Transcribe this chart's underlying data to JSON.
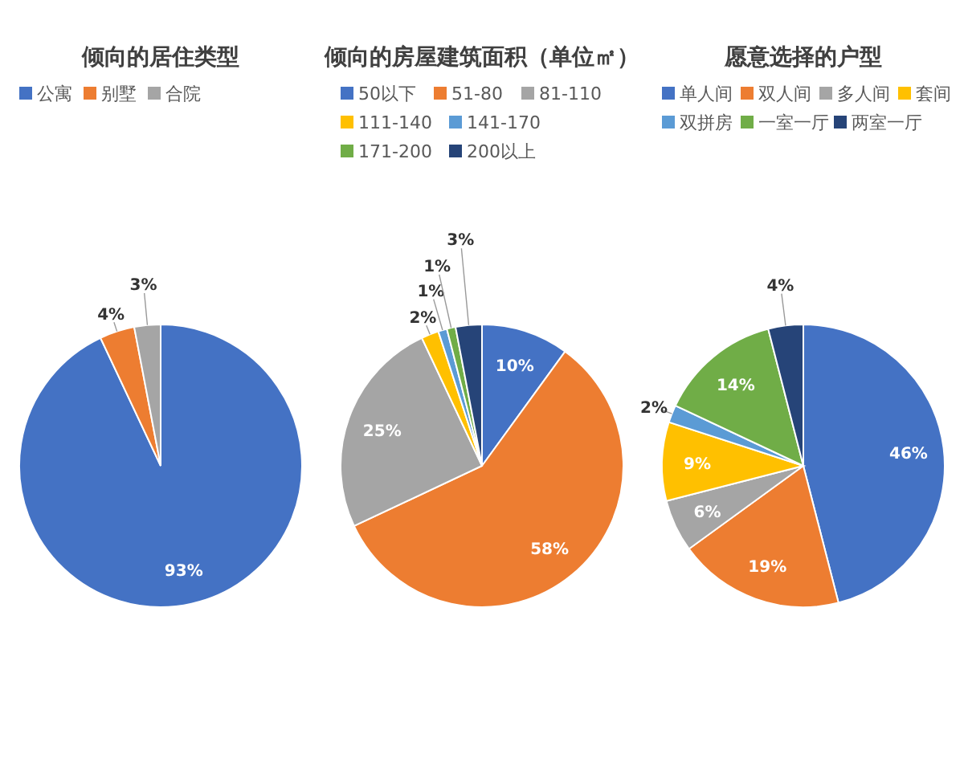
{
  "chart_data": [
    {
      "type": "pie",
      "title": "倾向的居住类型",
      "categories": [
        "公寓",
        "别墅",
        "合院"
      ],
      "values": [
        93,
        4,
        3
      ],
      "colors": [
        "#4472c4",
        "#ed7d31",
        "#a5a5a5"
      ],
      "value_labels": [
        "93%",
        "4%",
        "3%"
      ],
      "legend": "top"
    },
    {
      "type": "pie",
      "title": "倾向的房屋建筑面积（单位㎡）",
      "categories": [
        "50以下",
        "51-80",
        "81-110",
        "111-140",
        "141-170",
        "171-200",
        "200以上"
      ],
      "values": [
        10,
        58,
        25,
        2,
        1,
        1,
        3
      ],
      "colors": [
        "#4472c4",
        "#ed7d31",
        "#a5a5a5",
        "#ffc000",
        "#5b9bd5",
        "#70ad47",
        "#264478"
      ],
      "value_labels": [
        "10%",
        "58%",
        "25%",
        "2%",
        "1%",
        "1%",
        "3%"
      ],
      "legend": "top"
    },
    {
      "type": "pie",
      "title": "愿意选择的户型",
      "categories": [
        "单人间",
        "双人间",
        "多人间",
        "套间",
        "双拼房",
        "一室一厅",
        "两室一厅"
      ],
      "values": [
        46,
        19,
        6,
        9,
        2,
        14,
        4
      ],
      "colors": [
        "#4472c4",
        "#ed7d31",
        "#a5a5a5",
        "#ffc000",
        "#5b9bd5",
        "#70ad47",
        "#264478"
      ],
      "value_labels": [
        "46%",
        "19%",
        "6%",
        "9%",
        "2%",
        "14%",
        "4%"
      ],
      "legend": "top"
    }
  ]
}
